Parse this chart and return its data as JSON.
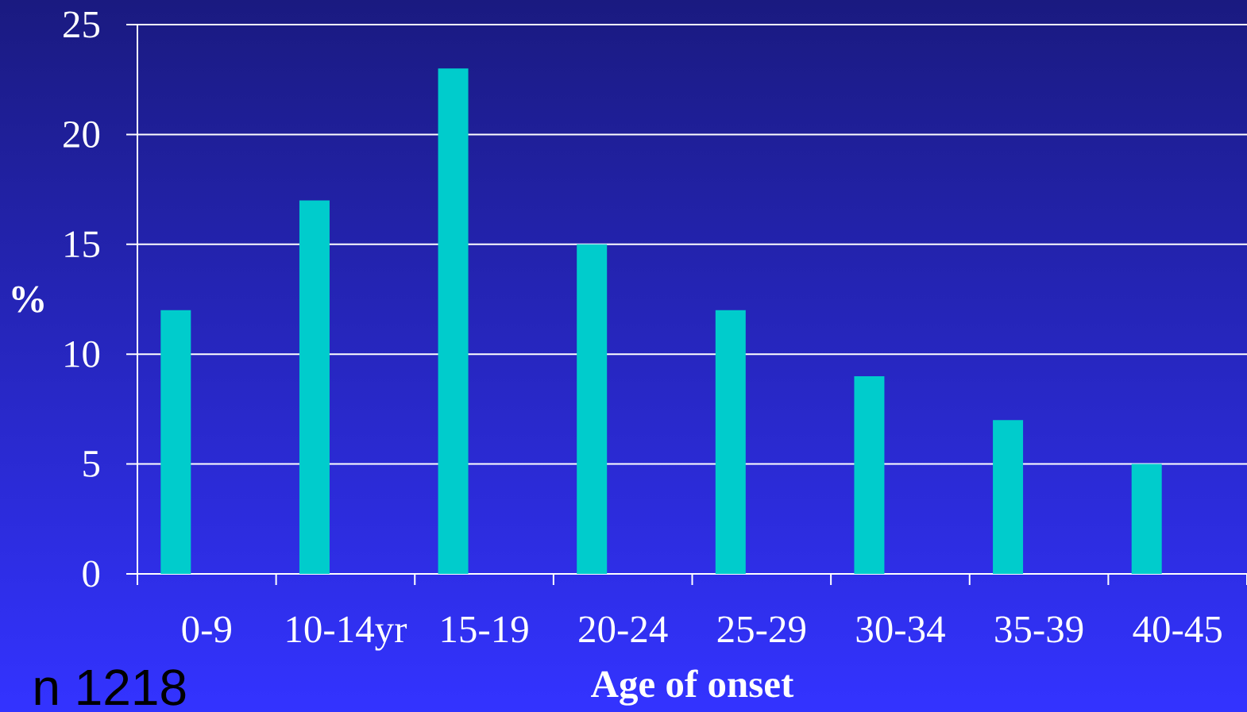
{
  "chart_data": {
    "type": "bar",
    "xlabel": "Age of onset",
    "ylabel": "%",
    "categories": [
      "0-9",
      "10-14yr",
      "15-19",
      "20-24",
      "25-29",
      "30-34",
      "35-39",
      "40-45"
    ],
    "values": [
      12,
      17,
      23,
      15,
      12,
      9,
      7,
      5
    ],
    "color": "#00cccc",
    "ylim": [
      0,
      25
    ],
    "yticks": [
      0,
      5,
      10,
      15,
      20,
      25
    ],
    "grid": "y",
    "annotations": [
      "n 1218"
    ]
  }
}
